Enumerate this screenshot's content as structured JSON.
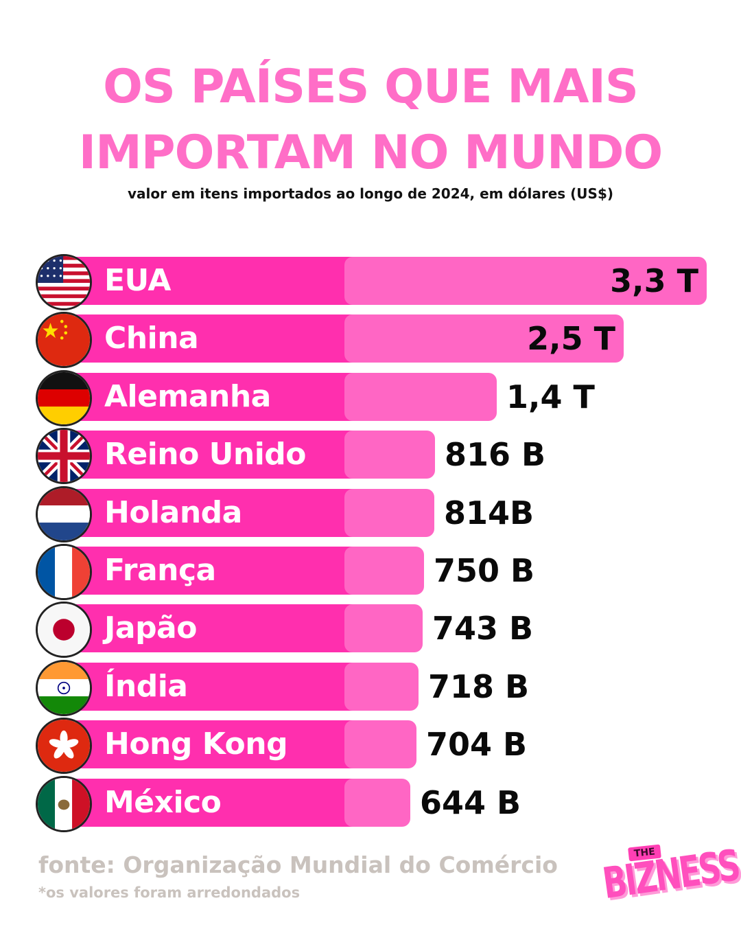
{
  "title_line1": "OS PAÍSES QUE MAIS",
  "title_line2": "IMPORTAM NO MUNDO",
  "subtitle": "valor em itens importados ao longo de 2024, em dólares (US$)",
  "source": "fonte: Organização Mundial do Comércio",
  "note": "*os valores foram arredondados",
  "logo": {
    "top": "THE",
    "main": "BIZNESS"
  },
  "colors": {
    "title": "#ff6ec7",
    "label_bar": "#ff2fae",
    "value_bar": "#ff66c4",
    "source_text": "#c9c2bd"
  },
  "chart_data": {
    "type": "bar",
    "orientation": "horizontal",
    "unit": "US$",
    "categories": [
      "EUA",
      "China",
      "Alemanha",
      "Reino Unido",
      "Holanda",
      "França",
      "Japão",
      "Índia",
      "Hong Kong",
      "México"
    ],
    "values": [
      3300,
      2500,
      1400,
      816,
      814,
      750,
      743,
      718,
      704,
      644
    ],
    "value_labels": [
      "3,3 T",
      "2,5 T",
      "1,4 T",
      "816 B",
      "814B",
      "750 B",
      "743 B",
      "718 B",
      "704 B",
      "644 B"
    ],
    "flags": [
      "usa-flag-icon",
      "china-flag-icon",
      "germany-flag-icon",
      "uk-flag-icon",
      "netherlands-flag-icon",
      "france-flag-icon",
      "japan-flag-icon",
      "india-flag-icon",
      "hong-kong-flag-icon",
      "mexico-flag-icon"
    ]
  }
}
